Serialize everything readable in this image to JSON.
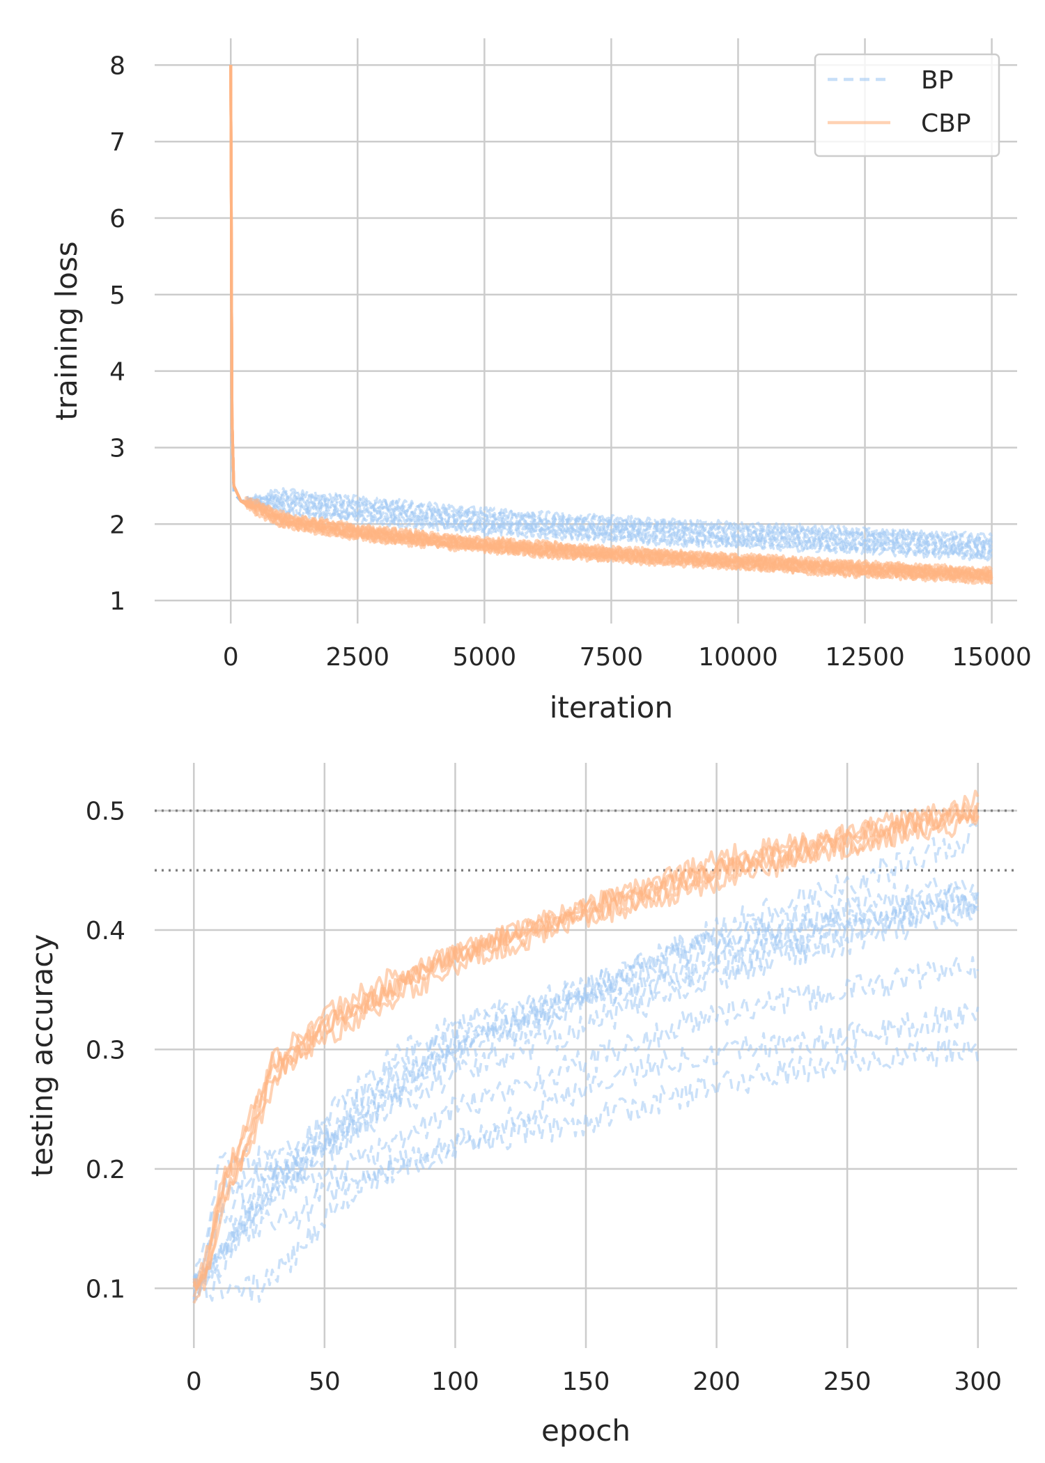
{
  "colors": {
    "bp": "#a1c9f4",
    "cbp": "#ffb482",
    "grid": "#cccccc",
    "reference_line": "#808080",
    "text": "#262626"
  },
  "legend": {
    "placement": "top-right",
    "entries": [
      {
        "label": "BP",
        "style": "dashed",
        "color": "#a1c9f4"
      },
      {
        "label": "CBP",
        "style": "solid",
        "color": "#ffb482"
      }
    ]
  },
  "chart_data": [
    {
      "type": "line",
      "xlabel": "iteration",
      "ylabel": "training loss",
      "xlim": [
        -1500,
        15500
      ],
      "ylim": [
        0.7,
        8.35
      ],
      "xticks": [
        0,
        2500,
        5000,
        7500,
        10000,
        12500,
        15000
      ],
      "yticks": [
        1,
        2,
        3,
        4,
        5,
        6,
        7,
        8
      ],
      "grid": true,
      "series": [
        {
          "name": "BP",
          "style": "dashed",
          "color": "#a1c9f4",
          "runs": 10,
          "points": [
            [
              0,
              8.0
            ],
            [
              25,
              3.2
            ],
            [
              60,
              2.4
            ],
            [
              200,
              2.3
            ],
            [
              1000,
              2.28
            ],
            [
              2500,
              2.18
            ],
            [
              5000,
              2.02
            ],
            [
              7500,
              1.92
            ],
            [
              10000,
              1.84
            ],
            [
              12500,
              1.77
            ],
            [
              15000,
              1.68
            ]
          ],
          "run_offsets": [
            -0.12,
            -0.09,
            -0.06,
            -0.03,
            0.0,
            0.03,
            0.06,
            0.09,
            0.12,
            0.15
          ]
        },
        {
          "name": "CBP",
          "style": "solid",
          "color": "#ffb482",
          "runs": 10,
          "points": [
            [
              0,
              8.0
            ],
            [
              25,
              3.4
            ],
            [
              60,
              2.5
            ],
            [
              200,
              2.3
            ],
            [
              500,
              2.22
            ],
            [
              1000,
              2.05
            ],
            [
              2500,
              1.88
            ],
            [
              5000,
              1.72
            ],
            [
              7500,
              1.6
            ],
            [
              10000,
              1.5
            ],
            [
              12500,
              1.4
            ],
            [
              15000,
              1.32
            ]
          ],
          "run_offsets": [
            -0.06,
            -0.045,
            -0.03,
            -0.015,
            0.0,
            0.015,
            0.03,
            0.045,
            0.06,
            0.075
          ]
        }
      ]
    },
    {
      "type": "line",
      "xlabel": "epoch",
      "ylabel": "testing accuracy",
      "xlim": [
        -15,
        315
      ],
      "ylim": [
        0.05,
        0.54
      ],
      "xticks": [
        0,
        50,
        100,
        150,
        200,
        250,
        300
      ],
      "yticks": [
        0.1,
        0.2,
        0.3,
        0.4,
        0.5
      ],
      "yticklabels": [
        "0.1",
        "0.2",
        "0.3",
        "0.4",
        "0.5"
      ],
      "grid": true,
      "reference_lines": [
        0.5,
        0.45
      ],
      "series": [
        {
          "name": "BP",
          "style": "dashed",
          "color": "#a1c9f4",
          "runs": [
            [
              [
                0,
                0.1
              ],
              [
                10,
                0.16
              ],
              [
                25,
                0.19
              ],
              [
                50,
                0.24
              ],
              [
                75,
                0.29
              ],
              [
                100,
                0.32
              ],
              [
                150,
                0.35
              ],
              [
                200,
                0.39
              ],
              [
                250,
                0.42
              ],
              [
                300,
                0.44
              ]
            ],
            [
              [
                0,
                0.1
              ],
              [
                10,
                0.14
              ],
              [
                25,
                0.18
              ],
              [
                50,
                0.23
              ],
              [
                75,
                0.28
              ],
              [
                100,
                0.31
              ],
              [
                150,
                0.35
              ],
              [
                200,
                0.39
              ],
              [
                250,
                0.41
              ],
              [
                300,
                0.43
              ]
            ],
            [
              [
                0,
                0.1
              ],
              [
                15,
                0.14
              ],
              [
                30,
                0.19
              ],
              [
                50,
                0.22
              ],
              [
                75,
                0.27
              ],
              [
                100,
                0.3
              ],
              [
                150,
                0.34
              ],
              [
                200,
                0.38
              ],
              [
                250,
                0.41
              ],
              [
                300,
                0.42
              ]
            ],
            [
              [
                0,
                0.1
              ],
              [
                10,
                0.12
              ],
              [
                25,
                0.17
              ],
              [
                50,
                0.21
              ],
              [
                75,
                0.26
              ],
              [
                100,
                0.3
              ],
              [
                150,
                0.35
              ],
              [
                200,
                0.4
              ],
              [
                250,
                0.44
              ],
              [
                300,
                0.48
              ]
            ],
            [
              [
                0,
                0.1
              ],
              [
                10,
                0.18
              ],
              [
                25,
                0.2
              ],
              [
                50,
                0.22
              ],
              [
                75,
                0.25
              ],
              [
                100,
                0.28
              ],
              [
                150,
                0.32
              ],
              [
                200,
                0.36
              ],
              [
                250,
                0.4
              ],
              [
                300,
                0.43
              ]
            ],
            [
              [
                0,
                0.1
              ],
              [
                10,
                0.13
              ],
              [
                30,
                0.18
              ],
              [
                50,
                0.22
              ],
              [
                75,
                0.26
              ],
              [
                100,
                0.3
              ],
              [
                150,
                0.34
              ],
              [
                200,
                0.37
              ],
              [
                250,
                0.39
              ],
              [
                300,
                0.42
              ]
            ],
            [
              [
                0,
                0.1
              ],
              [
                10,
                0.2
              ],
              [
                25,
                0.21
              ],
              [
                50,
                0.19
              ],
              [
                75,
                0.22
              ],
              [
                100,
                0.25
              ],
              [
                150,
                0.29
              ],
              [
                200,
                0.33
              ],
              [
                250,
                0.35
              ],
              [
                300,
                0.37
              ]
            ],
            [
              [
                0,
                0.1
              ],
              [
                25,
                0.1
              ],
              [
                40,
                0.13
              ],
              [
                50,
                0.16
              ],
              [
                75,
                0.2
              ],
              [
                100,
                0.22
              ],
              [
                150,
                0.24
              ],
              [
                200,
                0.27
              ],
              [
                250,
                0.29
              ],
              [
                300,
                0.3
              ]
            ],
            [
              [
                0,
                0.1
              ],
              [
                20,
                0.15
              ],
              [
                40,
                0.16
              ],
              [
                50,
                0.18
              ],
              [
                75,
                0.2
              ],
              [
                100,
                0.22
              ],
              [
                150,
                0.27
              ],
              [
                200,
                0.3
              ],
              [
                250,
                0.31
              ],
              [
                300,
                0.33
              ]
            ]
          ]
        },
        {
          "name": "CBP",
          "style": "solid",
          "color": "#ffb482",
          "runs": [
            [
              [
                0,
                0.1
              ],
              [
                5,
                0.12
              ],
              [
                10,
                0.18
              ],
              [
                20,
                0.22
              ],
              [
                30,
                0.28
              ],
              [
                50,
                0.32
              ],
              [
                75,
                0.35
              ],
              [
                100,
                0.38
              ],
              [
                150,
                0.42
              ],
              [
                200,
                0.45
              ],
              [
                250,
                0.48
              ],
              [
                300,
                0.5
              ]
            ],
            [
              [
                0,
                0.1
              ],
              [
                5,
                0.11
              ],
              [
                10,
                0.17
              ],
              [
                20,
                0.21
              ],
              [
                30,
                0.27
              ],
              [
                50,
                0.32
              ],
              [
                75,
                0.35
              ],
              [
                100,
                0.38
              ],
              [
                150,
                0.42
              ],
              [
                200,
                0.45
              ],
              [
                250,
                0.47
              ],
              [
                300,
                0.5
              ]
            ],
            [
              [
                0,
                0.1
              ],
              [
                5,
                0.12
              ],
              [
                10,
                0.19
              ],
              [
                20,
                0.23
              ],
              [
                30,
                0.29
              ],
              [
                50,
                0.32
              ],
              [
                75,
                0.35
              ],
              [
                100,
                0.38
              ],
              [
                150,
                0.41
              ],
              [
                200,
                0.45
              ],
              [
                250,
                0.48
              ],
              [
                300,
                0.5
              ]
            ],
            [
              [
                0,
                0.09
              ],
              [
                5,
                0.11
              ],
              [
                10,
                0.16
              ],
              [
                20,
                0.22
              ],
              [
                30,
                0.28
              ],
              [
                50,
                0.31
              ],
              [
                75,
                0.34
              ],
              [
                100,
                0.37
              ],
              [
                150,
                0.41
              ],
              [
                200,
                0.44
              ],
              [
                250,
                0.47
              ],
              [
                300,
                0.49
              ]
            ],
            [
              [
                0,
                0.1
              ],
              [
                5,
                0.13
              ],
              [
                10,
                0.18
              ],
              [
                20,
                0.24
              ],
              [
                30,
                0.29
              ],
              [
                50,
                0.33
              ],
              [
                75,
                0.36
              ],
              [
                100,
                0.38
              ],
              [
                150,
                0.42
              ],
              [
                200,
                0.46
              ],
              [
                250,
                0.48
              ],
              [
                300,
                0.51
              ]
            ]
          ]
        }
      ]
    }
  ]
}
